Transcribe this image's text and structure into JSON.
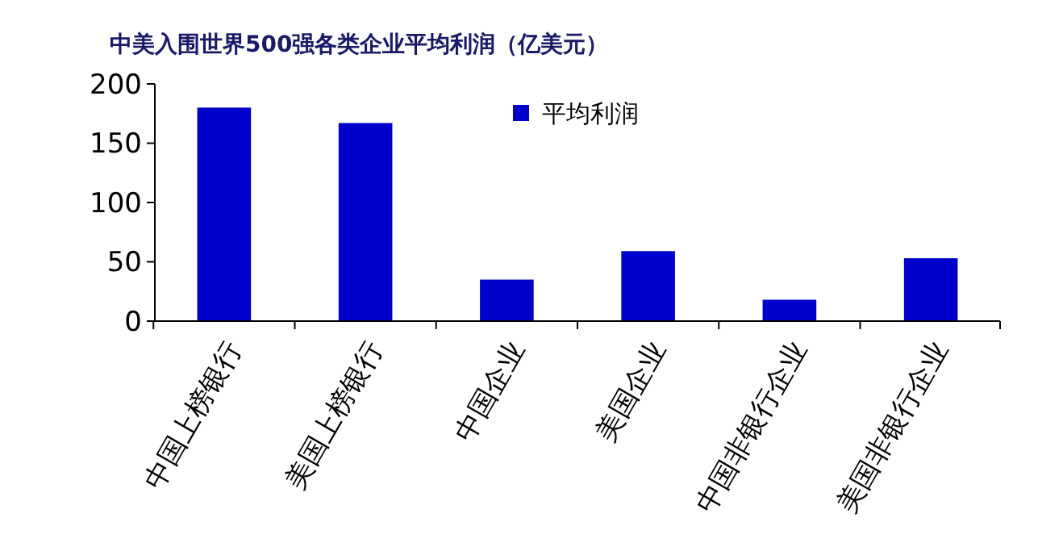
{
  "chart_data": {
    "type": "bar",
    "title": "中美入围世界500强各类企业平均利润（亿美元）",
    "categories": [
      "中国上榜银行",
      "美国上榜银行",
      "中国企业",
      "美国企业",
      "中国非银行企业",
      "美国非银行企业"
    ],
    "series": [
      {
        "name": "平均利润",
        "color": "#0000cc",
        "values": [
          180,
          167,
          35,
          59,
          18,
          53
        ]
      }
    ],
    "ylim": [
      0,
      200
    ],
    "yticks": [
      0,
      50,
      100,
      150,
      200
    ],
    "grid": false,
    "legend": "top"
  }
}
